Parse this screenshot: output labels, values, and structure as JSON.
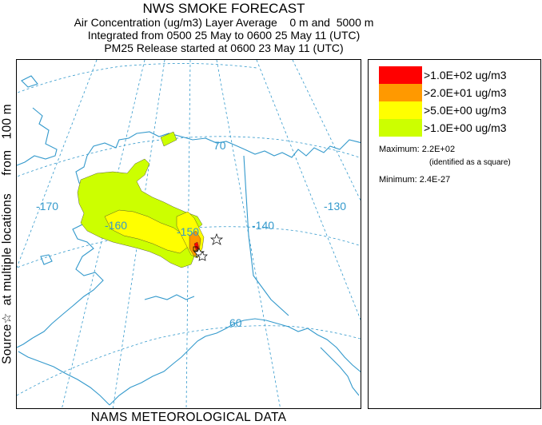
{
  "title": {
    "main": "NWS SMOKE FORECAST",
    "line1": "Air Concentration (ug/m3) Layer Average    0 m and  5000 m",
    "line2": "Integrated from 0500 25 May to 0600 25 May 11 (UTC)",
    "line3": "PM25 Release started at 0600 23 May 11 (UTC)"
  },
  "side_label": "Source☆  at multiple locations     from   100 m",
  "bottom_label": "NAMS METEOROLOGICAL DATA",
  "map": {
    "longitude_labels": [
      "-170",
      "-160",
      "-150",
      "-140",
      "-130"
    ],
    "latitude_labels": [
      "70",
      "60"
    ]
  },
  "legend": {
    "items": [
      {
        "label": ">1.0E+02 ug/m3",
        "color": "#ff0000"
      },
      {
        "label": ">2.0E+01 ug/m3",
        "color": "#ff9900"
      },
      {
        "label": ">5.0E+00 ug/m3",
        "color": "#ffff00"
      },
      {
        "label": ">1.0E+00 ug/m3",
        "color": "#ccff00"
      }
    ],
    "maximum": "Maximum: 2.2E+02",
    "maximum_note": "(identified as a square)",
    "minimum": "Minimum: 2.4E-27"
  },
  "colors": {
    "coastline": "#3399cc",
    "graticule": "#3399cc",
    "light_band": "#ccff00",
    "mid_band": "#ffff00",
    "high_band": "#ff9900",
    "peak_band": "#ff0000"
  }
}
